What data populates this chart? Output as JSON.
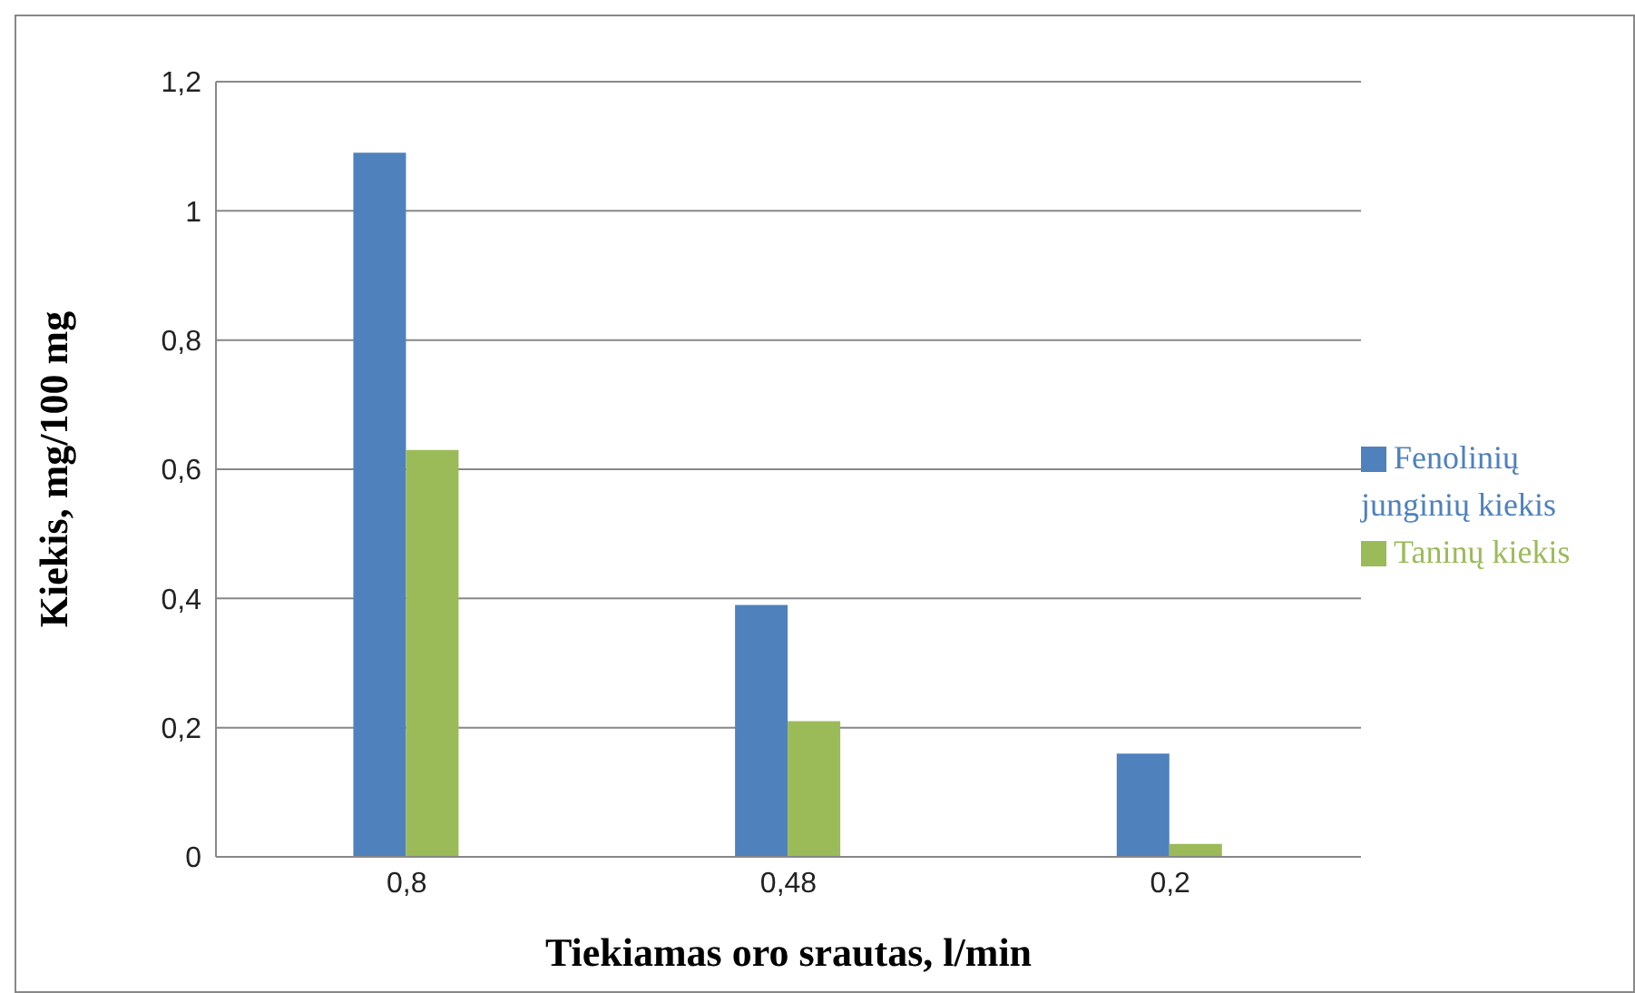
{
  "chart_data": {
    "type": "bar",
    "xlabel": "Tiekiamas oro srautas, l/min",
    "ylabel": "Kiekis, mg/100 mg",
    "categories": [
      "0,8",
      "0,48",
      "0,2"
    ],
    "series": [
      {
        "name": "Fenolinių junginių kiekis",
        "color": "#4f81bd",
        "values": [
          1.09,
          0.39,
          0.16
        ]
      },
      {
        "name": "Taninų kiekis",
        "color": "#9bbb59",
        "values": [
          0.63,
          0.21,
          0.02
        ]
      }
    ],
    "ylim": [
      0,
      1.2
    ],
    "yticks": [
      0,
      {
        "value": 0.2,
        "label": "0,2"
      },
      {
        "value": 0.4,
        "label": "0,4"
      },
      {
        "value": 0.6,
        "label": "0,6"
      },
      {
        "value": 0.8,
        "label": "0,8"
      },
      1,
      {
        "value": 1.2,
        "label": "1,2"
      }
    ],
    "grid": "y",
    "legend": "right"
  }
}
